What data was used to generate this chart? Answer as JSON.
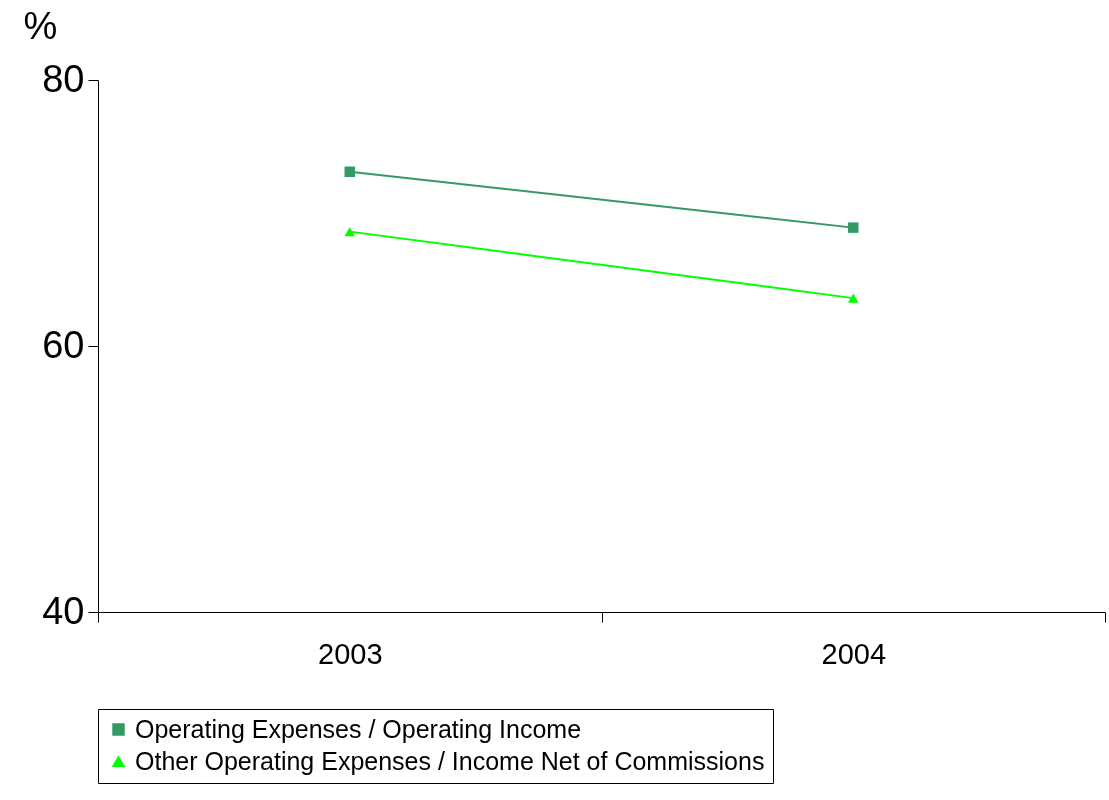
{
  "chart_data": {
    "type": "line",
    "ylabel": "%",
    "categories": [
      "2003",
      "2004"
    ],
    "series": [
      {
        "name": "Operating Expenses / Operating Income",
        "color": "#339966",
        "marker": "square",
        "values": [
          73.1,
          68.9
        ]
      },
      {
        "name": "Other Operating Expenses / Income Net of Commissions",
        "color": "#00ff00",
        "marker": "triangle",
        "values": [
          68.6,
          63.6
        ]
      }
    ],
    "ylim": [
      40,
      80
    ],
    "yticks": [
      40,
      60,
      80
    ],
    "legend": "bottom"
  }
}
